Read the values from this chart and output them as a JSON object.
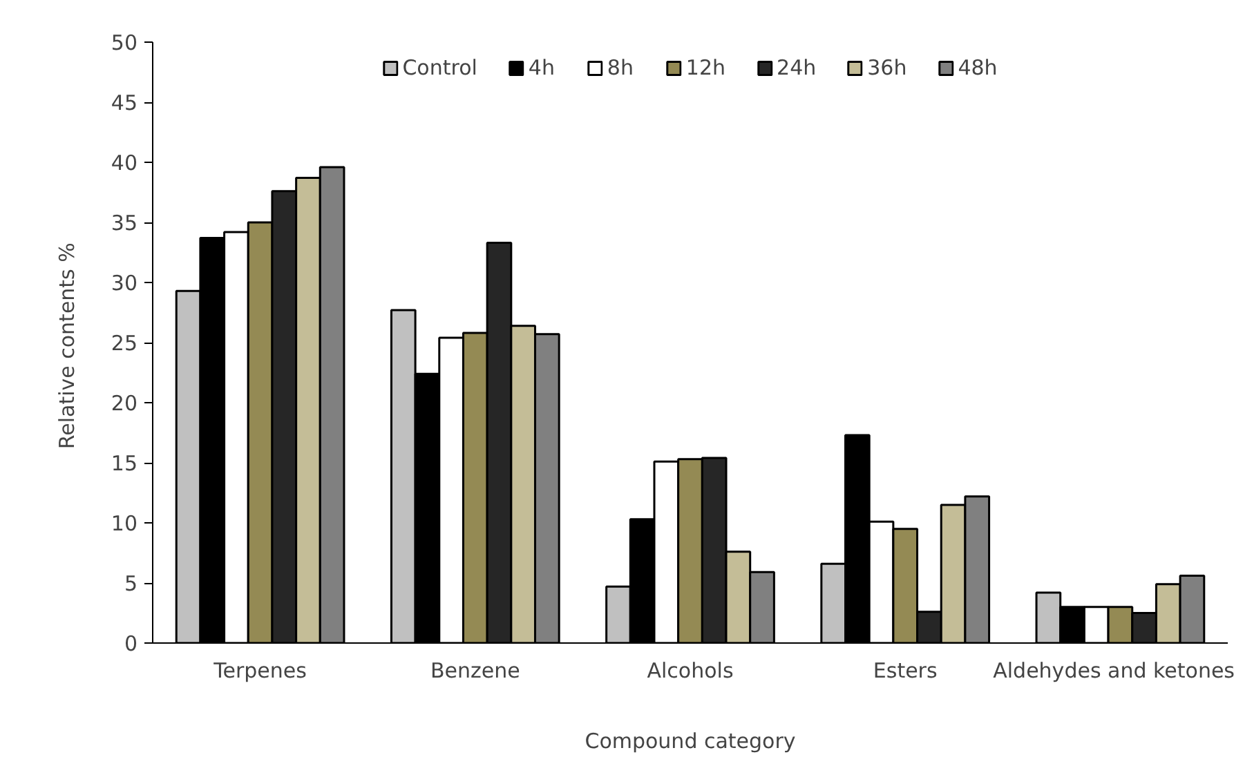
{
  "chart_data": {
    "type": "bar",
    "xlabel": "Compound category",
    "ylabel": "Relative  contents %",
    "categories": [
      "Terpenes",
      "Benzene",
      "Alcohols",
      "Esters",
      "Aldehydes and ketones"
    ],
    "series": [
      {
        "name": "Control",
        "color": "#c0c0c0",
        "values": [
          29.3,
          27.7,
          4.7,
          6.6,
          4.2
        ]
      },
      {
        "name": "4h",
        "color": "#000000",
        "values": [
          33.7,
          22.4,
          10.3,
          17.3,
          3.0
        ]
      },
      {
        "name": "8h",
        "color": "#ffffff",
        "values": [
          34.2,
          25.4,
          15.1,
          10.1,
          3.0
        ]
      },
      {
        "name": "12h",
        "color": "#948a54",
        "values": [
          35.0,
          25.8,
          15.3,
          9.5,
          3.0
        ]
      },
      {
        "name": "24h",
        "color": "#262626",
        "values": [
          37.6,
          33.3,
          15.4,
          2.6,
          2.5
        ]
      },
      {
        "name": "36h",
        "color": "#c4bd97",
        "values": [
          38.7,
          26.4,
          7.6,
          11.5,
          4.9
        ]
      },
      {
        "name": "48h",
        "color": "#808080",
        "values": [
          39.6,
          25.7,
          5.9,
          12.2,
          5.6
        ]
      }
    ],
    "ylim": [
      0,
      50
    ],
    "yticks": [
      0,
      5,
      10,
      15,
      20,
      25,
      30,
      35,
      40,
      45,
      50
    ],
    "grid": false,
    "legend": "top"
  }
}
